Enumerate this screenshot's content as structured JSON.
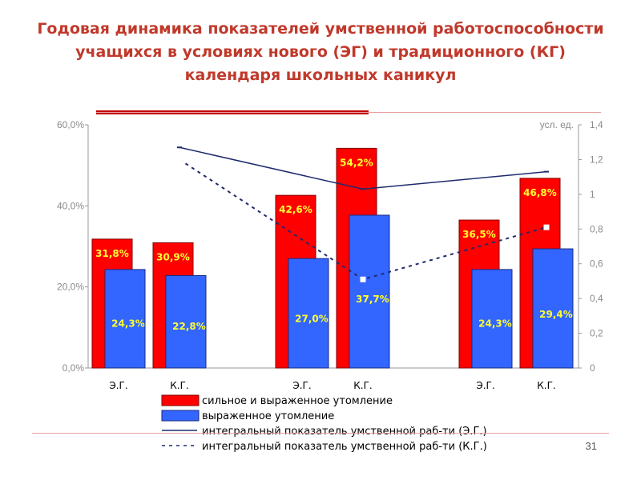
{
  "slide": {
    "title": "Годовая динамика показателей  умственной работоспособности учащихся  в условиях нового (ЭГ) и традиционного (КГ) календаря школьных каникул",
    "page_number": "31"
  },
  "colors": {
    "red_bar": "#ff0000",
    "blue_bar": "#3366ff",
    "line_eg": "#1f2a6e",
    "line_kg": "#1f2a6e",
    "label": "#ffff33",
    "title": "#c0392b"
  },
  "chart_data": {
    "type": "bar",
    "categories": [
      "Э.Г.",
      "К.Г.",
      "Э.Г.",
      "К.Г.",
      "Э.Г.",
      "К.Г."
    ],
    "series": [
      {
        "name": "сильное и выраженное утомление",
        "values": [
          31.8,
          30.9,
          42.6,
          54.2,
          36.5,
          46.8
        ],
        "labels": [
          "31,8%",
          "30,9%",
          "42,6%",
          "54,2%",
          "36,5%",
          "46,8%"
        ],
        "axis": "left"
      },
      {
        "name": " выраженное утомление",
        "values": [
          24.3,
          22.8,
          27.0,
          37.7,
          24.3,
          29.4
        ],
        "labels": [
          "24,3%",
          "22,8%",
          "27,0%",
          "37,7%",
          "24,3%",
          "29,4%"
        ],
        "axis": "left"
      },
      {
        "name": "интегральный показатель умственной раб-ти (Э.Г.)",
        "type": "line",
        "style": "solid",
        "x": [
          1,
          3,
          5
        ],
        "values": [
          1.27,
          1.03,
          1.13
        ],
        "axis": "right"
      },
      {
        "name": "интегральный показатель умственной раб-ти (К.Г.)",
        "type": "line",
        "style": "dashed",
        "x": [
          1,
          3,
          5
        ],
        "values": [
          1.2,
          0.51,
          0.81
        ],
        "axis": "right"
      }
    ],
    "y_left": {
      "ylim": [
        0,
        60
      ],
      "ticks": [
        "0,0%",
        "20,0%",
        "40,0%",
        "60,0%"
      ]
    },
    "y_right": {
      "label": "усл. ед.",
      "ylim": [
        0,
        1.4
      ],
      "ticks": [
        "0",
        "0,2",
        "0,4",
        "0,6",
        "0,8",
        "1",
        "1,2",
        "1,4"
      ]
    },
    "grid": false,
    "legend": "bottom"
  }
}
